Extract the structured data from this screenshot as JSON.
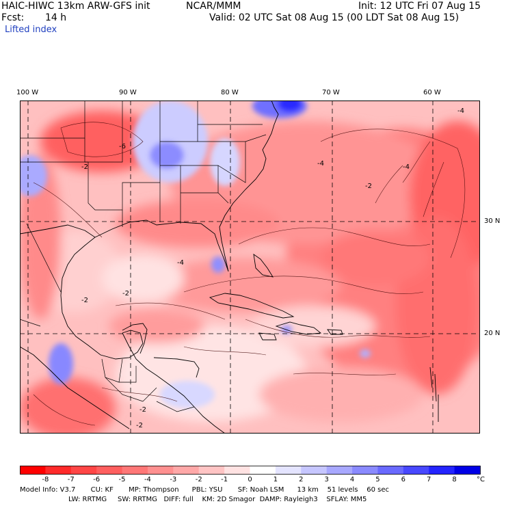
{
  "header": {
    "model": "HAIC-HIWC 13km ARW-GFS init",
    "org": "NCAR/MMM",
    "init": "Init: 12 UTC Fri 07 Aug 15",
    "fcst_label": "Fcst:",
    "fcst_value": "14 h",
    "valid": "Valid: 02 UTC Sat 08 Aug 15 (00 LDT Sat 08 Aug 15)",
    "field": "Lifted index"
  },
  "map": {
    "lon_labels": [
      "100 W",
      "90 W",
      "80 W",
      "70 W",
      "60 W"
    ],
    "lat_labels": [
      "30 N",
      "20 N"
    ],
    "contour_labels": [
      "-2",
      "-4",
      "-6"
    ]
  },
  "colorbar": {
    "labels": [
      "-8",
      "-7",
      "-6",
      "-5",
      "-4",
      "-3",
      "-2",
      "-1",
      "0",
      "1",
      "2",
      "3",
      "4",
      "5",
      "6",
      "7",
      "8"
    ],
    "unit": "°C",
    "colors": [
      "#ff0000",
      "#ff2a2a",
      "#ff4646",
      "#ff5f5f",
      "#ff7777",
      "#ff9090",
      "#ffa8a8",
      "#ffc4c4",
      "#ffe2e2",
      "#ffffff",
      "#e4e4ff",
      "#c6c6ff",
      "#a8a8ff",
      "#8a8aff",
      "#6a6aff",
      "#4848ff",
      "#2424ff",
      "#0000e6"
    ]
  },
  "model_info": {
    "line1": "Model Info: V3.7       CU: KF       MP: Thompson      PBL: YSU       SF: Noah LSM      13 km    51 levels    60 sec",
    "line2": "LW: RRTMG     SW: RRTMG   DIFF: full    KM: 2D Smagor  DAMP: Rayleigh3    SFLAY: MM5"
  }
}
